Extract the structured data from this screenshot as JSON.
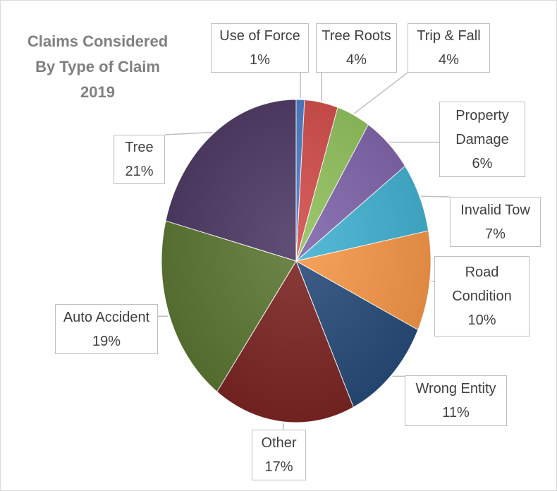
{
  "chart_data": {
    "type": "pie",
    "title": "Claims Considered By Type of Claim 2019",
    "categories": [
      "Use of Force",
      "Tree Roots",
      "Trip & Fall",
      "Property Damage",
      "Invalid Tow",
      "Road Condition",
      "Wrong Entity",
      "Other",
      "Auto Accident",
      "Tree"
    ],
    "values": [
      1,
      4,
      4,
      6,
      7,
      10,
      11,
      17,
      19,
      21
    ],
    "value_labels": [
      "1%",
      "4%",
      "4%",
      "6%",
      "7%",
      "10%",
      "11%",
      "17%",
      "19%",
      "21%"
    ],
    "colors": [
      "#4a7bc8",
      "#d24b48",
      "#8fc05a",
      "#7e62a9",
      "#3fb1d1",
      "#f79646",
      "#254a78",
      "#7b2321",
      "#5a7630",
      "#4b3762"
    ]
  }
}
